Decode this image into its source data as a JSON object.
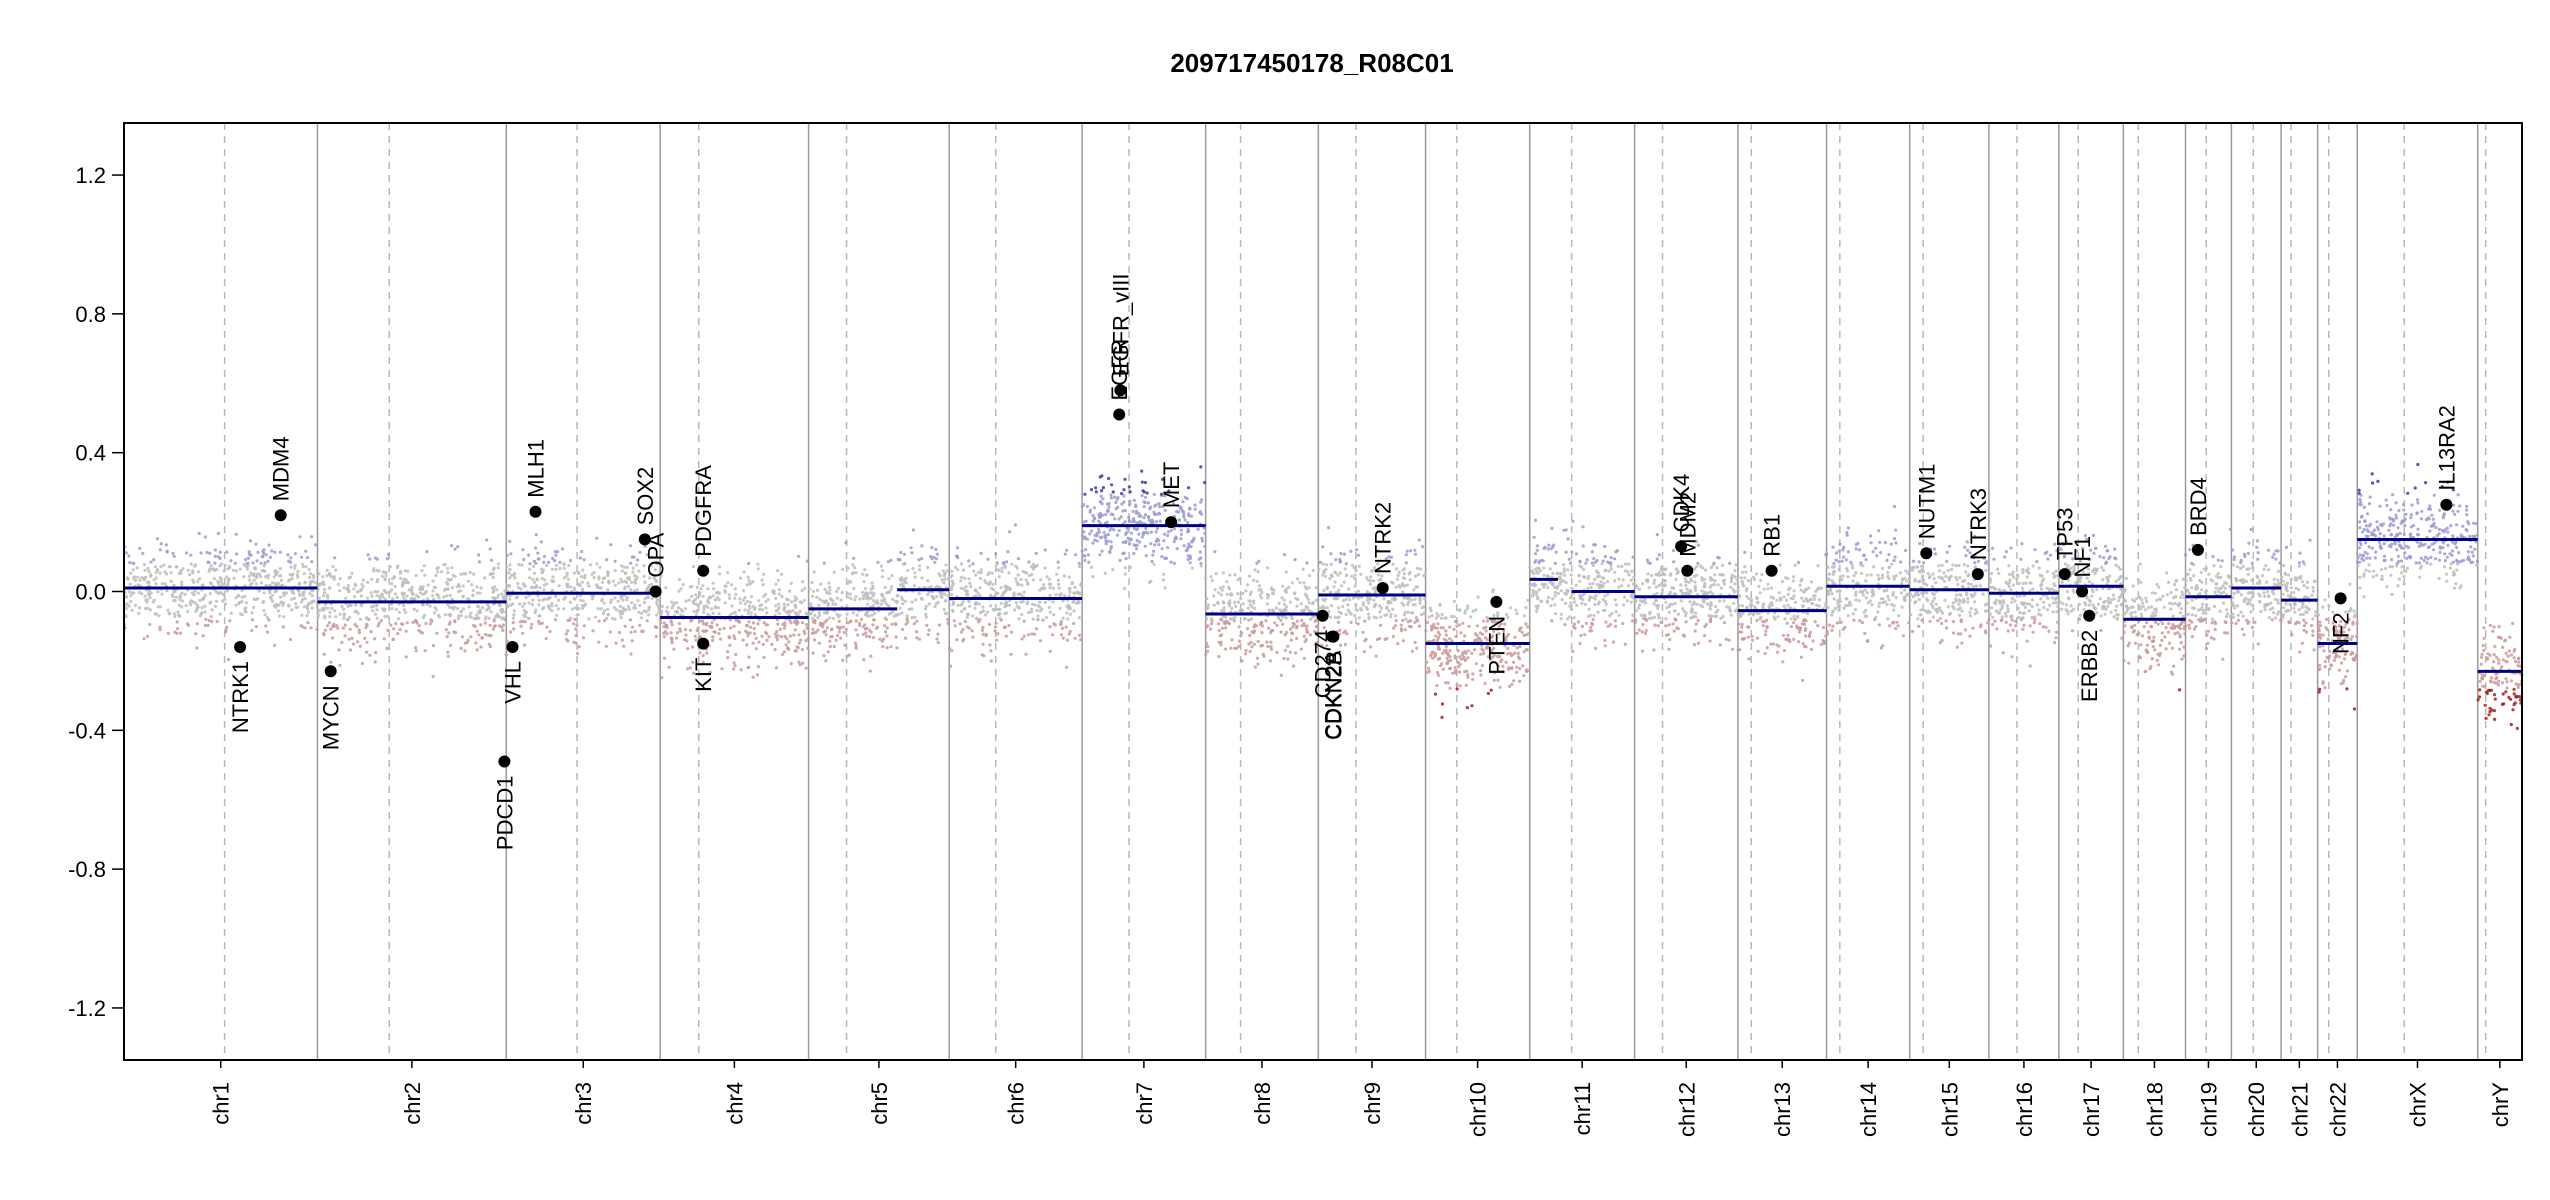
{
  "chart_data": {
    "type": "scatter",
    "title": "209717450178_R08C01",
    "xlabel": "",
    "ylabel": "",
    "ylim": [
      -1.35,
      1.35
    ],
    "y_ticks": [
      1.2,
      0.8,
      0.4,
      0.0,
      -0.4,
      -0.8,
      -1.2
    ],
    "y_tick_labels": [
      "1.2",
      "0.8",
      "0.4",
      "0.0",
      "-0.4",
      "-0.8",
      "-1.2"
    ],
    "colors": {
      "gain": "#3a3aa8",
      "loss": "#a51d1d",
      "segment": "#000080",
      "gene": "#000000",
      "neutral": "#bdbdbd"
    },
    "chromosomes": [
      {
        "name": "chr1",
        "length": 249,
        "centromere": 0.52,
        "segments": [
          {
            "from": 0,
            "to": 1,
            "value": 0.01
          }
        ]
      },
      {
        "name": "chr2",
        "length": 243,
        "centromere": 0.38,
        "segments": [
          {
            "from": 0,
            "to": 1,
            "value": -0.03
          }
        ]
      },
      {
        "name": "chr3",
        "length": 198,
        "centromere": 0.46,
        "segments": [
          {
            "from": 0,
            "to": 1,
            "value": -0.005
          }
        ]
      },
      {
        "name": "chr4",
        "length": 191,
        "centromere": 0.26,
        "segments": [
          {
            "from": 0,
            "to": 1,
            "value": -0.075
          }
        ]
      },
      {
        "name": "chr5",
        "length": 181,
        "centromere": 0.27,
        "segments": [
          {
            "from": 0,
            "to": 0.63,
            "value": -0.05
          },
          {
            "from": 0.63,
            "to": 1,
            "value": 0.005
          }
        ]
      },
      {
        "name": "chr6",
        "length": 171,
        "centromere": 0.35,
        "segments": [
          {
            "from": 0,
            "to": 1,
            "value": -0.02
          }
        ]
      },
      {
        "name": "chr7",
        "length": 159,
        "centromere": 0.38,
        "segments": [
          {
            "from": 0,
            "to": 1,
            "value": 0.19
          }
        ]
      },
      {
        "name": "chr8",
        "length": 145,
        "centromere": 0.31,
        "segments": [
          {
            "from": 0,
            "to": 1,
            "value": -0.065
          }
        ]
      },
      {
        "name": "chr9",
        "length": 138,
        "centromere": 0.35,
        "segments": [
          {
            "from": 0,
            "to": 1,
            "value": -0.01
          }
        ]
      },
      {
        "name": "chr10",
        "length": 134,
        "centromere": 0.3,
        "segments": [
          {
            "from": 0,
            "to": 1,
            "value": -0.15
          }
        ]
      },
      {
        "name": "chr11",
        "length": 135,
        "centromere": 0.4,
        "segments": [
          {
            "from": 0,
            "to": 0.27,
            "value": 0.035
          },
          {
            "from": 0.4,
            "to": 1,
            "value": 0.0
          }
        ]
      },
      {
        "name": "chr12",
        "length": 133,
        "centromere": 0.27,
        "segments": [
          {
            "from": 0,
            "to": 1,
            "value": -0.015
          }
        ]
      },
      {
        "name": "chr13",
        "length": 114,
        "centromere": 0.15,
        "segments": [
          {
            "from": 0,
            "to": 1,
            "value": -0.055
          }
        ]
      },
      {
        "name": "chr14",
        "length": 107,
        "centromere": 0.16,
        "segments": [
          {
            "from": 0,
            "to": 1,
            "value": 0.015
          }
        ]
      },
      {
        "name": "chr15",
        "length": 102,
        "centromere": 0.17,
        "segments": [
          {
            "from": 0,
            "to": 1,
            "value": 0.005
          }
        ]
      },
      {
        "name": "chr16",
        "length": 90,
        "centromere": 0.4,
        "segments": [
          {
            "from": 0,
            "to": 1,
            "value": -0.005
          }
        ]
      },
      {
        "name": "chr17",
        "length": 83,
        "centromere": 0.3,
        "segments": [
          {
            "from": 0,
            "to": 1,
            "value": 0.015
          }
        ]
      },
      {
        "name": "chr18",
        "length": 80,
        "centromere": 0.24,
        "segments": [
          {
            "from": 0,
            "to": 1,
            "value": -0.08
          }
        ]
      },
      {
        "name": "chr19",
        "length": 59,
        "centromere": 0.45,
        "segments": [
          {
            "from": 0,
            "to": 1,
            "value": -0.015
          }
        ]
      },
      {
        "name": "chr20",
        "length": 64,
        "centromere": 0.44,
        "segments": [
          {
            "from": 0,
            "to": 1,
            "value": 0.01
          }
        ]
      },
      {
        "name": "chr21",
        "length": 47,
        "centromere": 0.27,
        "segments": [
          {
            "from": 0,
            "to": 1,
            "value": -0.025
          }
        ]
      },
      {
        "name": "chr22",
        "length": 51,
        "centromere": 0.28,
        "segments": [
          {
            "from": 0,
            "to": 1,
            "value": -0.15
          }
        ]
      },
      {
        "name": "chrX",
        "length": 155,
        "centromere": 0.39,
        "segments": [
          {
            "from": 0,
            "to": 1,
            "value": 0.15
          }
        ]
      },
      {
        "name": "chrY",
        "length": 57,
        "centromere": 0.18,
        "segments": [
          {
            "from": 0,
            "to": 1,
            "value": -0.23
          }
        ]
      }
    ],
    "genes": [
      {
        "name": "NTRK1",
        "chr": "chr1",
        "pos": 0.6,
        "value": -0.16,
        "dir": "down"
      },
      {
        "name": "MDM4",
        "chr": "chr1",
        "pos": 0.81,
        "value": 0.22,
        "dir": "up"
      },
      {
        "name": "MYCN",
        "chr": "chr2",
        "pos": 0.07,
        "value": -0.23,
        "dir": "down"
      },
      {
        "name": "PDCD1",
        "chr": "chr2",
        "pos": 0.99,
        "value": -0.49,
        "dir": "down"
      },
      {
        "name": "VHL",
        "chr": "chr3",
        "pos": 0.04,
        "value": -0.16,
        "dir": "down"
      },
      {
        "name": "MLH1",
        "chr": "chr3",
        "pos": 0.19,
        "value": 0.23,
        "dir": "up"
      },
      {
        "name": "SOX2",
        "chr": "chr3",
        "pos": 0.9,
        "value": 0.15,
        "dir": "up"
      },
      {
        "name": "OPA",
        "chr": "chr3",
        "pos": 0.97,
        "value": 0.0,
        "dir": "up"
      },
      {
        "name": "PDGFRA",
        "chr": "chr4",
        "pos": 0.29,
        "value": 0.06,
        "dir": "up"
      },
      {
        "name": "KIT",
        "chr": "chr4",
        "pos": 0.29,
        "value": -0.15,
        "dir": "down"
      },
      {
        "name": "EGFR",
        "chr": "chr7",
        "pos": 0.3,
        "value": 0.51,
        "dir": "up"
      },
      {
        "name": "EGFR_vIII",
        "chr": "chr7",
        "pos": 0.31,
        "value": 0.58,
        "dir": "up"
      },
      {
        "name": "MET",
        "chr": "chr7",
        "pos": 0.72,
        "value": 0.2,
        "dir": "up"
      },
      {
        "name": "CD274",
        "chr": "chr9",
        "pos": 0.04,
        "value": -0.07,
        "dir": "down"
      },
      {
        "name": "CDKN2A",
        "chr": "chr9",
        "pos": 0.13,
        "value": -0.13,
        "dir": "down"
      },
      {
        "name": "CDKN2B",
        "chr": "chr9",
        "pos": 0.14,
        "value": -0.13,
        "dir": "down"
      },
      {
        "name": "NTRK2",
        "chr": "chr9",
        "pos": 0.6,
        "value": 0.01,
        "dir": "up"
      },
      {
        "name": "PTEN",
        "chr": "chr10",
        "pos": 0.68,
        "value": -0.03,
        "dir": "down"
      },
      {
        "name": "CDK4",
        "chr": "chr12",
        "pos": 0.45,
        "value": 0.13,
        "dir": "up"
      },
      {
        "name": "MDM2",
        "chr": "chr12",
        "pos": 0.51,
        "value": 0.06,
        "dir": "up"
      },
      {
        "name": "RB1",
        "chr": "chr13",
        "pos": 0.38,
        "value": 0.06,
        "dir": "up"
      },
      {
        "name": "NUTM1",
        "chr": "chr15",
        "pos": 0.21,
        "value": 0.11,
        "dir": "up"
      },
      {
        "name": "NTRK3",
        "chr": "chr15",
        "pos": 0.86,
        "value": 0.05,
        "dir": "up"
      },
      {
        "name": "TP53",
        "chr": "chr17",
        "pos": 0.09,
        "value": 0.05,
        "dir": "up"
      },
      {
        "name": "NF1",
        "chr": "chr17",
        "pos": 0.36,
        "value": 0.0,
        "dir": "up"
      },
      {
        "name": "ERBB2",
        "chr": "chr17",
        "pos": 0.47,
        "value": -0.07,
        "dir": "down"
      },
      {
        "name": "BRD4",
        "chr": "chr19",
        "pos": 0.27,
        "value": 0.12,
        "dir": "up"
      },
      {
        "name": "NF2",
        "chr": "chr22",
        "pos": 0.58,
        "value": -0.02,
        "dir": "down"
      },
      {
        "name": "IL13RA2",
        "chr": "chrX",
        "pos": 0.74,
        "value": 0.25,
        "dir": "up"
      }
    ]
  }
}
